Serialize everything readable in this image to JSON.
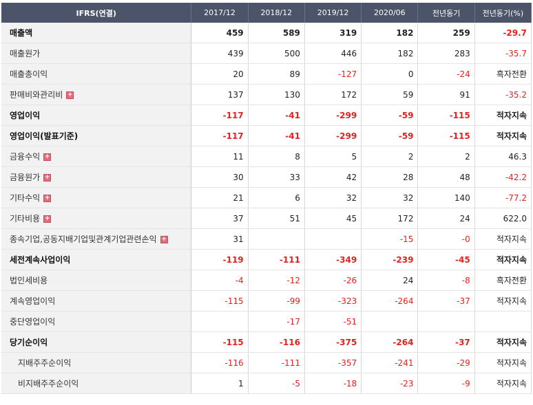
{
  "header": {
    "cols": [
      "IFRS(연결)",
      "2017/12",
      "2018/12",
      "2019/12",
      "2020/06",
      "전년동기",
      "전년동기(%)"
    ]
  },
  "rows": [
    {
      "label": "매출액",
      "bold": true,
      "sep": false,
      "sub": false,
      "plus": false,
      "values": [
        "459",
        "589",
        "319",
        "182",
        "259",
        "-29.7"
      ]
    },
    {
      "label": "매출원가",
      "bold": false,
      "sep": false,
      "sub": false,
      "plus": false,
      "values": [
        "439",
        "500",
        "446",
        "182",
        "283",
        "-35.7"
      ]
    },
    {
      "label": "매출총이익",
      "bold": false,
      "sep": false,
      "sub": false,
      "plus": false,
      "values": [
        "20",
        "89",
        "-127",
        "0",
        "-24",
        "흑자전환"
      ]
    },
    {
      "label": "판매비와관리비",
      "bold": false,
      "sep": false,
      "sub": false,
      "plus": true,
      "values": [
        "137",
        "130",
        "172",
        "59",
        "91",
        "-35.2"
      ]
    },
    {
      "label": "영업이익",
      "bold": true,
      "sep": true,
      "sub": false,
      "plus": false,
      "values": [
        "-117",
        "-41",
        "-299",
        "-59",
        "-115",
        "적자지속"
      ]
    },
    {
      "label": "영업이익(발표기준)",
      "bold": true,
      "sep": true,
      "sub": false,
      "plus": false,
      "values": [
        "-117",
        "-41",
        "-299",
        "-59",
        "-115",
        "적자지속"
      ]
    },
    {
      "label": "금융수익",
      "bold": false,
      "sep": true,
      "sub": false,
      "plus": true,
      "values": [
        "11",
        "8",
        "5",
        "2",
        "2",
        "46.3"
      ]
    },
    {
      "label": "금융원가",
      "bold": false,
      "sep": false,
      "sub": false,
      "plus": true,
      "values": [
        "30",
        "33",
        "42",
        "28",
        "48",
        "-42.2"
      ]
    },
    {
      "label": "기타수익",
      "bold": false,
      "sep": false,
      "sub": false,
      "plus": true,
      "values": [
        "21",
        "6",
        "32",
        "32",
        "140",
        "-77.2"
      ]
    },
    {
      "label": "기타비용",
      "bold": false,
      "sep": false,
      "sub": false,
      "plus": true,
      "values": [
        "37",
        "51",
        "45",
        "172",
        "24",
        "622.0"
      ]
    },
    {
      "label": "종속기업,공동지배기업및관계기업관련손익",
      "bold": false,
      "sep": false,
      "sub": false,
      "plus": true,
      "values": [
        "31",
        "",
        "",
        "-15",
        "-0",
        "적자지속"
      ]
    },
    {
      "label": "세전계속사업이익",
      "bold": true,
      "sep": true,
      "sub": false,
      "plus": false,
      "values": [
        "-119",
        "-111",
        "-349",
        "-239",
        "-45",
        "적자지속"
      ]
    },
    {
      "label": "법인세비용",
      "bold": false,
      "sep": true,
      "sub": false,
      "plus": false,
      "values": [
        "-4",
        "-12",
        "-26",
        "24",
        "-8",
        "흑자전환"
      ]
    },
    {
      "label": "계속영업이익",
      "bold": false,
      "sep": false,
      "sub": false,
      "plus": false,
      "values": [
        "-115",
        "-99",
        "-323",
        "-264",
        "-37",
        "적자지속"
      ]
    },
    {
      "label": "중단영업이익",
      "bold": false,
      "sep": false,
      "sub": false,
      "plus": false,
      "values": [
        "",
        "-17",
        "-51",
        "",
        "",
        ""
      ]
    },
    {
      "label": "당기순이익",
      "bold": true,
      "sep": true,
      "sub": false,
      "plus": false,
      "values": [
        "-115",
        "-116",
        "-375",
        "-264",
        "-37",
        "적자지속"
      ]
    },
    {
      "label": "지배주주순이익",
      "bold": false,
      "sep": true,
      "sub": true,
      "plus": false,
      "values": [
        "-116",
        "-111",
        "-357",
        "-241",
        "-29",
        "적자지속"
      ]
    },
    {
      "label": "비지배주주순이익",
      "bold": false,
      "sep": false,
      "sub": true,
      "plus": false,
      "values": [
        "1",
        "-5",
        "-18",
        "-23",
        "-9",
        "적자지속"
      ]
    }
  ],
  "icons": {
    "expand": "plus-box-icon"
  },
  "colors": {
    "header_bg": "#4b5468",
    "negative": "#e2221f",
    "label_bg": "#f2f2f2"
  }
}
